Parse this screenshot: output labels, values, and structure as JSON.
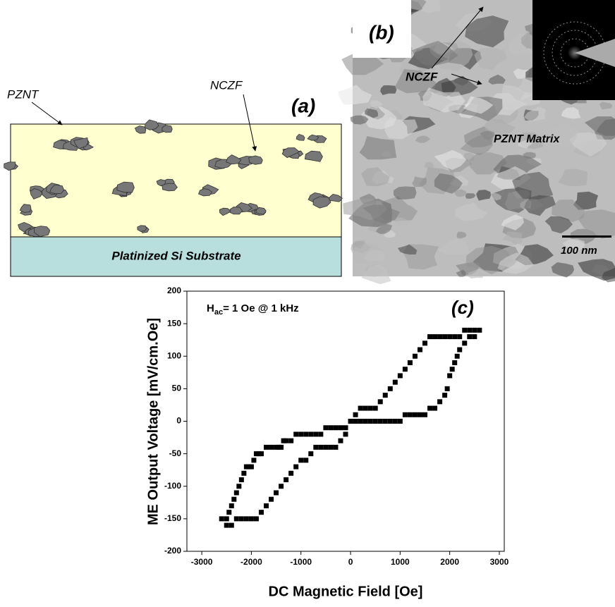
{
  "panel_a": {
    "label": "(a)",
    "pznt": "PZNT",
    "nczf": "NCZF",
    "substrate": "Platinized Si Substrate"
  },
  "panel_b": {
    "label": "(b)",
    "nczf": "NCZF",
    "matrix": "PZNT Matrix",
    "scale": "100 nm"
  },
  "chart_data": {
    "type": "scatter",
    "panel_label": "(c)",
    "annotation": {
      "main": "H",
      "sub": "ac",
      "rest": "= 1 Oe @ 1 kHz"
    },
    "x_label": "DC Magnetic Field [Oe]",
    "y_label": "ME Output Voltage [mV/cm.Oe]",
    "xlim": [
      -3300,
      3100
    ],
    "ylim": [
      -200,
      200
    ],
    "xticks": [
      -3000,
      -2000,
      -1000,
      0,
      1000,
      2000,
      3000
    ],
    "yticks": [
      -200,
      -150,
      -100,
      -50,
      0,
      50,
      100,
      150,
      200
    ],
    "series": [
      {
        "color": "#000000",
        "x": [
          -2600,
          -2500,
          -2450,
          -2400,
          -2350,
          -2300,
          -2250,
          -2200,
          -2150,
          -2100,
          -2050,
          -2000,
          -1950,
          -1900,
          -1850,
          -1800,
          -1700,
          -1600,
          -1500,
          -1450,
          -1400,
          -1350,
          -1300,
          -1200,
          -1100,
          -1000,
          -900,
          -800,
          -700,
          -600,
          -500,
          -400,
          -300,
          -200,
          -100,
          0,
          100,
          200,
          300,
          400,
          500,
          600,
          700,
          800,
          900,
          1000,
          1100,
          1200,
          1300,
          1400,
          1500,
          1600,
          1700,
          1800,
          1900,
          2000,
          2100,
          2200,
          2300,
          2400,
          2500,
          2600
        ],
        "values": [
          -150,
          -150,
          -140,
          -130,
          -120,
          -110,
          -100,
          -90,
          -80,
          -70,
          -70,
          -70,
          -60,
          -50,
          -50,
          -50,
          -40,
          -40,
          -40,
          -40,
          -40,
          -30,
          -30,
          -30,
          -20,
          -20,
          -20,
          -20,
          -20,
          -20,
          -10,
          -10,
          -10,
          -10,
          -10,
          0,
          10,
          20,
          20,
          20,
          20,
          30,
          40,
          50,
          60,
          70,
          80,
          90,
          100,
          110,
          120,
          130,
          130,
          130,
          130,
          130,
          130,
          130,
          140,
          140,
          140,
          140
        ]
      },
      {
        "color": "#000000",
        "x": [
          2500,
          2400,
          2300,
          2200,
          2150,
          2100,
          2050,
          2000,
          1950,
          1900,
          1800,
          1700,
          1600,
          1500,
          1400,
          1300,
          1200,
          1100,
          1000,
          900,
          800,
          700,
          600,
          500,
          400,
          300,
          200,
          100,
          -100,
          -200,
          -300,
          -400,
          -500,
          -600,
          -700,
          -800,
          -900,
          -1000,
          -1100,
          -1200,
          -1300,
          -1400,
          -1500,
          -1600,
          -1700,
          -1800,
          -1900,
          -2000,
          -2100,
          -2200,
          -2300,
          -2400,
          -2500
        ],
        "values": [
          130,
          130,
          120,
          110,
          100,
          90,
          80,
          70,
          50,
          40,
          30,
          20,
          20,
          10,
          10,
          10,
          10,
          10,
          0,
          0,
          0,
          0,
          0,
          0,
          0,
          0,
          0,
          0,
          -20,
          -30,
          -40,
          -40,
          -40,
          -40,
          -40,
          -50,
          -60,
          -60,
          -70,
          -80,
          -90,
          -100,
          -110,
          -120,
          -130,
          -140,
          -150,
          -150,
          -150,
          -150,
          -150,
          -160,
          -160
        ]
      }
    ]
  }
}
